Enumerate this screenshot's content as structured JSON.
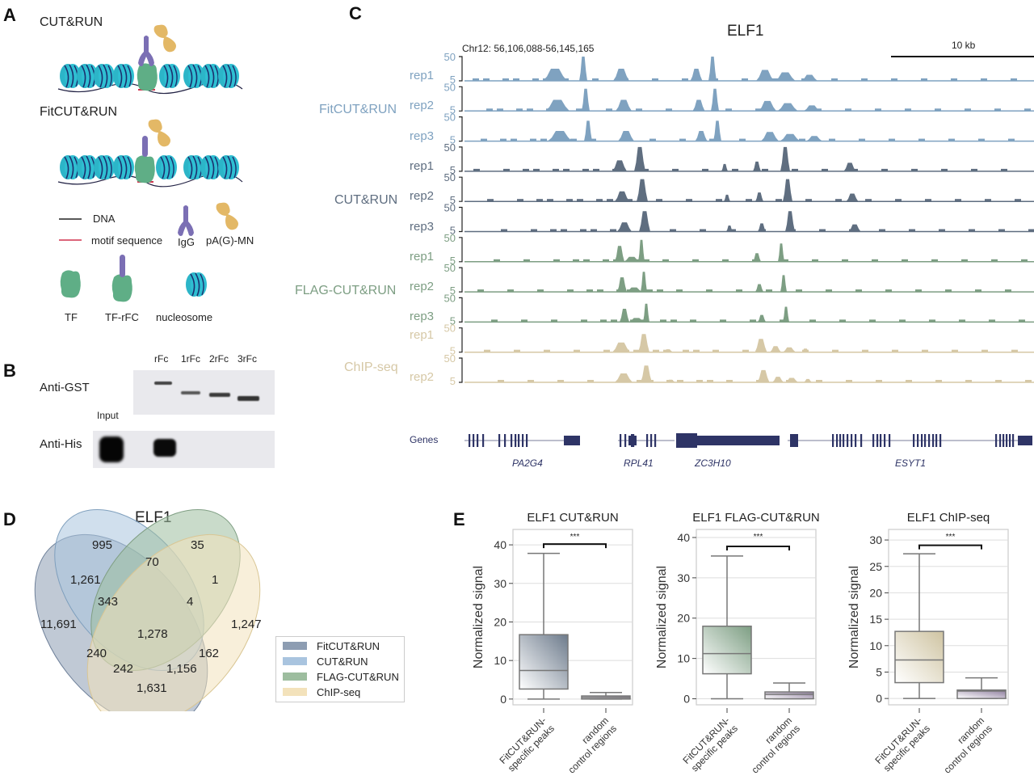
{
  "panels": {
    "A": {
      "letter": "A",
      "title_top": "CUT&RUN",
      "title_bottom": "FitCUT&RUN",
      "legend": {
        "dna": "DNA",
        "motif": "motif sequence",
        "igg": "IgG",
        "pamn": "pA(G)-MN",
        "tf": "TF",
        "tf_rfc": "TF-rFC",
        "nucleosome": "nucleosome"
      },
      "colors": {
        "nucleosome": "#2cb5c8",
        "nucleosome_stripe": "#1c2f6e",
        "tf": "#5fae86",
        "igg": "#7b6fb4",
        "pamn": "#e3b866",
        "dna": "#222244",
        "motif": "#d0344f"
      }
    },
    "B": {
      "letter": "B",
      "lanes": [
        "rFc",
        "1rFc",
        "2rFc",
        "3rFc"
      ],
      "input_label": "Input",
      "row1_label": "Anti-GST",
      "row2_label": "Anti-His"
    },
    "C": {
      "letter": "C",
      "title": "ELF1",
      "locus": "Chr12: 56,106,088-56,145,165",
      "scalebar": "10 kb",
      "ytick_top": "50",
      "ytick_bottom": "5",
      "groups": [
        {
          "name": "FitCUT&RUN",
          "color": "#7fa2c0",
          "reps": [
            "rep1",
            "rep2",
            "rep3"
          ]
        },
        {
          "name": "CUT&RUN",
          "color": "#5f6e80",
          "reps": [
            "rep1",
            "rep2",
            "rep3"
          ]
        },
        {
          "name": "FLAG-CUT&RUN",
          "color": "#7d9e83",
          "reps": [
            "rep1",
            "rep2",
            "rep3"
          ]
        },
        {
          "name": "ChIP-seq",
          "color": "#d6c8a6",
          "reps": [
            "rep1",
            "rep2"
          ]
        }
      ],
      "genes_label": "Genes",
      "genes": [
        "PA2G4",
        "RPL41",
        "ZC3H10",
        "ESYT1"
      ],
      "gene_color": "#2e3466"
    },
    "D": {
      "letter": "D",
      "title": "ELF1",
      "legend": [
        {
          "label": "FitCUT&RUN",
          "color": "#8d9db2"
        },
        {
          "label": "CUT&RUN",
          "color": "#a9c4df"
        },
        {
          "label": "FLAG-CUT&RUN",
          "color": "#9dbd9f"
        },
        {
          "label": "ChIP-seq",
          "color": "#f3e2bb"
        }
      ],
      "regions": {
        "cutrun_only": "995",
        "flag_only": "35",
        "cutrun_flag": "70",
        "fit_cutrun": "1,261",
        "flag_chip": "1",
        "fit_cutrun_flag": "343",
        "cutrun_flag_chip": "4",
        "fit_only": "11,691",
        "chip_only": "1,247",
        "all_four": "1,278",
        "fit_flag": "240",
        "flag_chip_fit_nocr": "162",
        "fit_flag_chip": "242",
        "fit_cutrun_flag_chip_alt": "1,156",
        "fit_chip": "1,631"
      }
    },
    "E": {
      "letter": "E",
      "ylabel": "Normalized signal",
      "significance": "***",
      "xlabels": [
        [
          "FitCUT&RUN-",
          "specific peaks"
        ],
        [
          "random",
          "control regions"
        ]
      ]
    }
  },
  "chart_data": [
    {
      "type": "box",
      "title": "ELF1 CUT&RUN",
      "ylabel": "Normalized signal",
      "ylim": [
        -1.5,
        44
      ],
      "yticks": [
        0,
        10,
        20,
        30,
        40
      ],
      "categories": [
        "FitCUT&RUN-specific peaks",
        "random control regions"
      ],
      "boxes": [
        {
          "min": 0,
          "q1": 2.6,
          "median": 7.4,
          "q3": 16.7,
          "max": 37.8
        },
        {
          "min": 0,
          "q1": 0,
          "median": 0.4,
          "q3": 0.8,
          "max": 1.7
        }
      ],
      "significance": "***",
      "grid": true,
      "box_colors": [
        "#6d7b8c",
        "#7a6f85"
      ]
    },
    {
      "type": "box",
      "title": "ELF1 FLAG-CUT&RUN",
      "ylabel": "Normalized signal",
      "ylim": [
        -1.5,
        42
      ],
      "yticks": [
        0,
        10,
        20,
        30,
        40
      ],
      "categories": [
        "FitCUT&RUN-specific peaks",
        "random control regions"
      ],
      "boxes": [
        {
          "min": 0,
          "q1": 6.2,
          "median": 11.2,
          "q3": 18.0,
          "max": 35.4
        },
        {
          "min": 0,
          "q1": 0,
          "median": 1.1,
          "q3": 1.7,
          "max": 3.9
        }
      ],
      "significance": "***",
      "grid": true,
      "box_colors": [
        "#7d9e83",
        "#8e7d9e"
      ]
    },
    {
      "type": "box",
      "title": "ELF1 ChIP-seq",
      "ylabel": "Normalized signal",
      "ylim": [
        -1.2,
        32
      ],
      "yticks": [
        0,
        5,
        10,
        15,
        20,
        25,
        30
      ],
      "categories": [
        "FitCUT&RUN-specific peaks",
        "random control regions"
      ],
      "boxes": [
        {
          "min": 0,
          "q1": 3.0,
          "median": 7.3,
          "q3": 12.7,
          "max": 27.4
        },
        {
          "min": 0,
          "q1": 0,
          "median": 1.4,
          "q3": 1.6,
          "max": 3.9
        }
      ],
      "significance": "***",
      "grid": true,
      "box_colors": [
        "#cfc4a2",
        "#8e7d9e"
      ]
    }
  ]
}
